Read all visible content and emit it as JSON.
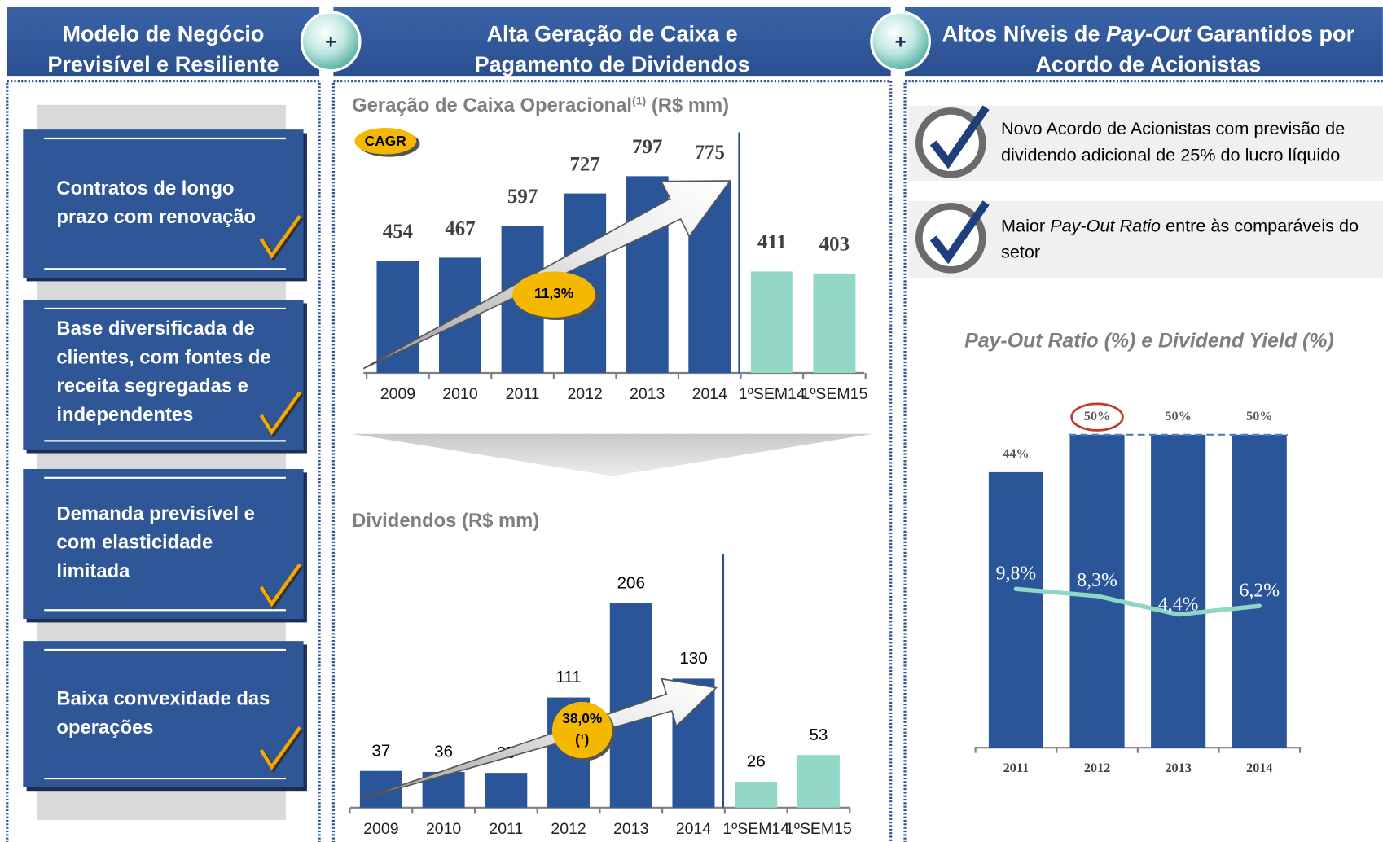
{
  "plus": "+",
  "headers": [
    {
      "lines": [
        [
          "Modelo de Negócio"
        ],
        [
          "Previsível e Resiliente"
        ]
      ]
    },
    {
      "lines": [
        [
          "Alta Geração de Caixa e"
        ],
        [
          "Pagamento de Dividendos"
        ]
      ]
    },
    {
      "lines": [
        [
          "Altos Níveis de ",
          {
            "text": "Pay-Out",
            "italic": true
          },
          " Garantidos por"
        ],
        [
          "Acordo de Acionistas"
        ]
      ]
    }
  ],
  "left_items": [
    {
      "lines": [
        "Contratos de longo",
        "prazo com renovação"
      ]
    },
    {
      "lines": [
        "Base diversificada de",
        "clientes, com fontes de",
        "receita segregadas e",
        "independentes"
      ]
    },
    {
      "lines": [
        "Demanda previsível e",
        "com elasticidade",
        "limitada"
      ]
    },
    {
      "lines": [
        "Baixa convexidade das",
        "operações"
      ]
    }
  ],
  "right_items": [
    {
      "lines": [
        [
          "Novo Acordo de Acionistas com previsão de"
        ],
        [
          "dividendo adicional de 25% do lucro líquido"
        ]
      ]
    },
    {
      "lines": [
        [
          "Maior ",
          {
            "text": "Pay-Out Ratio",
            "italic": true
          },
          " entre às comparáveis do"
        ],
        [
          "setor"
        ]
      ]
    }
  ],
  "chart_data": [
    {
      "type": "bar",
      "title": "Geração de Caixa Operacional",
      "title_note": "(1)",
      "title_unit": "(R$ mm)",
      "categories": [
        "2009",
        "2010",
        "2011",
        "2012",
        "2013",
        "2014",
        "1ºSEM14",
        "1ºSEM15"
      ],
      "values": [
        454,
        467,
        597,
        727,
        797,
        775,
        411,
        403
      ],
      "colors": [
        "#2a5599",
        "#2a5599",
        "#2a5599",
        "#2a5599",
        "#2a5599",
        "#2a5599",
        "#93d7c7",
        "#93d7c7"
      ],
      "badge": "CAGR",
      "growth": "11,3%"
    },
    {
      "type": "bar",
      "title": "Dividendos (R$ mm)",
      "categories": [
        "2009",
        "2010",
        "2011",
        "2012",
        "2013",
        "2014",
        "1ºSEM14",
        "1ºSEM15"
      ],
      "values": [
        37,
        36,
        35,
        111,
        206,
        130,
        26,
        53
      ],
      "colors": [
        "#2a5599",
        "#2a5599",
        "#2a5599",
        "#2a5599",
        "#2a5599",
        "#2a5599",
        "#93d7c7",
        "#93d7c7"
      ],
      "growth": "38,0%",
      "growth_note": "(¹)"
    },
    {
      "type": "bar",
      "title": "Pay-Out Ratio (%) e Dividend Yield (%)",
      "categories": [
        "2011",
        "2012",
        "2013",
        "2014"
      ],
      "series": [
        {
          "name": "Pay-Out Ratio",
          "color": "#2a5599",
          "values": [
            44,
            50,
            50,
            50
          ],
          "value_labels": [
            "44%",
            "50%",
            "50%",
            "50%"
          ]
        },
        {
          "name": "Dividend Yield",
          "type": "line",
          "color": "#8fd6c6",
          "values": [
            9.8,
            8.3,
            4.4,
            6.2
          ],
          "value_labels": [
            "9,8%",
            "8,3%",
            "4,4%",
            "6,2%"
          ]
        }
      ]
    }
  ]
}
